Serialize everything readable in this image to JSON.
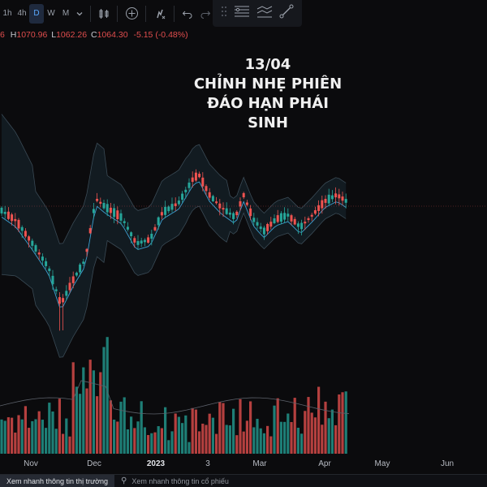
{
  "toolbar": {
    "timeframes": [
      {
        "label": "1h",
        "active": false
      },
      {
        "label": "4h",
        "active": false
      },
      {
        "label": "D",
        "active": true
      },
      {
        "label": "W",
        "active": false
      },
      {
        "label": "M",
        "active": false
      }
    ],
    "icons": [
      "chevron-down-icon",
      "candles-icon",
      "add-indicator-icon",
      "alert-icon",
      "undo-icon",
      "redo-icon"
    ]
  },
  "floating_toolbar": {
    "icons": [
      "drag-handle-icon",
      "horizontal-lines-icon",
      "trend-lines-icon",
      "ruler-icon"
    ]
  },
  "ohlc": {
    "open_tail": "6",
    "high_key": "H",
    "high": "1070.96",
    "low_key": "L",
    "low": "1062.26",
    "close_key": "C",
    "close": "1064.30",
    "change": "-5.15 (-0.48%)"
  },
  "annotation": {
    "line1": "13/04",
    "line2": "CHỈNH NHẸ PHIÊN",
    "line3": "ĐÁO HẠN PHÁI SINH"
  },
  "colors": {
    "up": "#26a69a",
    "down": "#ef5350",
    "band": "#1a2a33",
    "mid": "#3d9fd0",
    "background": "#0b0b0d"
  },
  "xaxis": {
    "labels": [
      {
        "text": "Nov",
        "bold": false
      },
      {
        "text": "Dec",
        "bold": false
      },
      {
        "text": "2023",
        "bold": true
      },
      {
        "text": "3",
        "bold": false
      },
      {
        "text": "Mar",
        "bold": false
      },
      {
        "text": "Apr",
        "bold": false
      },
      {
        "text": "May",
        "bold": false
      },
      {
        "text": "Jun",
        "bold": false
      }
    ]
  },
  "bottom_tabs": [
    {
      "label": "Xem nhanh thông tin thị trường",
      "active": true
    },
    {
      "label": "Xem nhanh thông tin cổ phiếu",
      "active": false
    }
  ],
  "chart_data": {
    "type": "candlestick",
    "last_close": 1064.3,
    "high": 1070.96,
    "low": 1062.26,
    "change": -5.15,
    "change_pct": -0.48
  }
}
